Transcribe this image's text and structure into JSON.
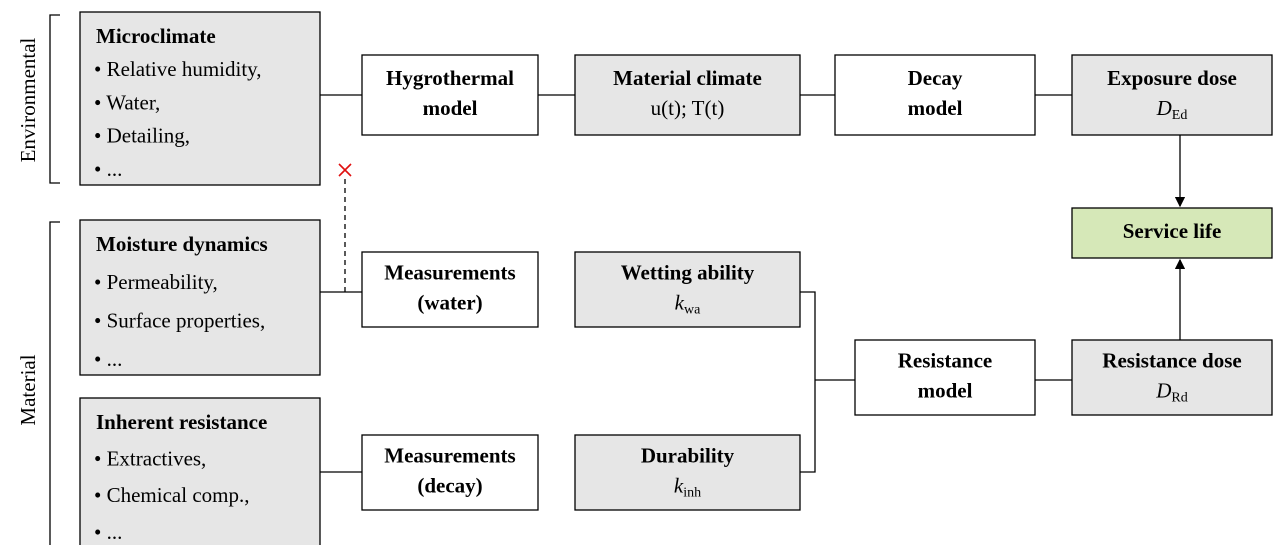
{
  "side_labels": [
    "Environmental",
    "Material"
  ],
  "nodes": [
    {
      "title": "Microclimate",
      "items": [
        "• Relative humidity,",
        "• Water,",
        "• Detailing,",
        "• ..."
      ]
    },
    {
      "lines": [
        "Hygrothermal",
        "model"
      ]
    },
    {
      "title": "Material climate",
      "detail": "u(t); T(t)"
    },
    {
      "lines": [
        "Decay",
        "model"
      ]
    },
    {
      "title": "Exposure dose",
      "symbol": "D",
      "subscript": "Ed"
    },
    {
      "title": "Service life"
    },
    {
      "title": "Moisture dynamics",
      "items": [
        "• Permeability,",
        "• Surface properties,",
        "• ..."
      ]
    },
    {
      "lines": [
        "Measurements",
        "(water)"
      ]
    },
    {
      "title": "Wetting ability",
      "symbol": "k",
      "subscript": "wa"
    },
    {
      "lines": [
        "Resistance",
        "model"
      ]
    },
    {
      "title": "Resistance dose",
      "symbol": "D",
      "subscript": "Rd"
    },
    {
      "title": "Inherent resistance",
      "items": [
        "• Extractives,",
        "• Chemical comp.,",
        "• ..."
      ]
    },
    {
      "lines": [
        "Measurements",
        "(decay)"
      ]
    },
    {
      "title": "Durability",
      "symbol": "k",
      "subscript": "inh"
    }
  ]
}
